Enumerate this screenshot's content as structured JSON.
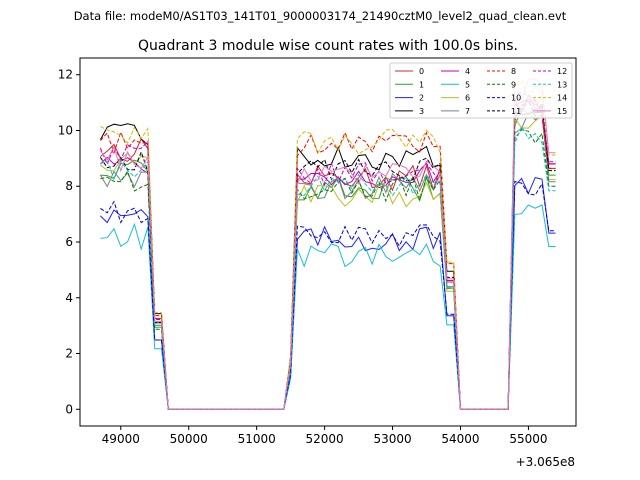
{
  "chart_data": {
    "type": "line",
    "suptitle": "Data file: modeM0/AS1T03_141T01_9000003174_21490cztM0_level2_quad_clean.evt",
    "title": "Quadrant 3 module wise count rates with 100.0s bins.",
    "xlabel": "",
    "ylabel": "",
    "x_offset_label": "+3.065e8",
    "xlim": [
      48400,
      55700
    ],
    "ylim": [
      -0.6,
      12.6
    ],
    "xticks": [
      49000,
      50000,
      51000,
      52000,
      53000,
      54000,
      55000
    ],
    "xtick_labels": [
      "49000",
      "50000",
      "51000",
      "52000",
      "53000",
      "54000",
      "55000"
    ],
    "yticks": [
      0,
      2,
      4,
      6,
      8,
      10,
      12
    ],
    "ytick_labels": [
      "0",
      "2",
      "4",
      "6",
      "8",
      "10",
      "12"
    ],
    "legend_position": "top-right",
    "segments": [
      {
        "start": 48700,
        "end": 49600
      },
      {
        "start": 49600,
        "end": 51500,
        "zero": true
      },
      {
        "start": 51500,
        "end": 53900
      },
      {
        "start": 53900,
        "end": 54800,
        "zero": true
      },
      {
        "start": 54800,
        "end": 55400
      }
    ],
    "series": [
      {
        "name": "0",
        "color": "#d62728",
        "dash": false,
        "levels": [
          9.3,
          8.3,
          10.8
        ]
      },
      {
        "name": "1",
        "color": "#2ca02c",
        "dash": false,
        "levels": [
          8.6,
          7.9,
          10.5
        ]
      },
      {
        "name": "2",
        "color": "#1f1fff",
        "dash": false,
        "levels": [
          7.1,
          6.1,
          7.9
        ]
      },
      {
        "name": "3",
        "color": "#000000",
        "dash": false,
        "levels": [
          9.8,
          9.0,
          11.0
        ]
      },
      {
        "name": "4",
        "color": "#bf00bf",
        "dash": false,
        "levels": [
          8.9,
          8.4,
          11.0
        ]
      },
      {
        "name": "5",
        "color": "#17becf",
        "dash": false,
        "levels": [
          6.2,
          5.5,
          7.3
        ]
      },
      {
        "name": "6",
        "color": "#bcbd22",
        "dash": false,
        "levels": [
          8.8,
          7.7,
          10.3
        ]
      },
      {
        "name": "7",
        "color": "#7f7f7f",
        "dash": false,
        "levels": [
          8.4,
          8.0,
          10.2
        ]
      },
      {
        "name": "8",
        "color": "#ff0000",
        "dash": true,
        "levels": [
          9.6,
          9.5,
          10.8
        ]
      },
      {
        "name": "9",
        "color": "#008000",
        "dash": true,
        "levels": [
          8.2,
          7.9,
          10.0
        ]
      },
      {
        "name": "10",
        "color": "#0000cd",
        "dash": true,
        "levels": [
          7.1,
          6.2,
          8.0
        ]
      },
      {
        "name": "11",
        "color": "#000000",
        "dash": true,
        "levels": [
          8.9,
          8.6,
          10.7
        ]
      },
      {
        "name": "12",
        "color": "#bf00bf",
        "dash": true,
        "levels": [
          9.2,
          8.4,
          11.1
        ]
      },
      {
        "name": "13",
        "color": "#17becf",
        "dash": true,
        "levels": [
          8.6,
          8.0,
          9.8
        ]
      },
      {
        "name": "14",
        "color": "#ccbb00",
        "dash": true,
        "levels": [
          9.9,
          9.6,
          11.4
        ]
      },
      {
        "name": "15",
        "color": "#e377c2",
        "dash": false,
        "levels": [
          9.0,
          8.5,
          11.5
        ]
      }
    ]
  }
}
